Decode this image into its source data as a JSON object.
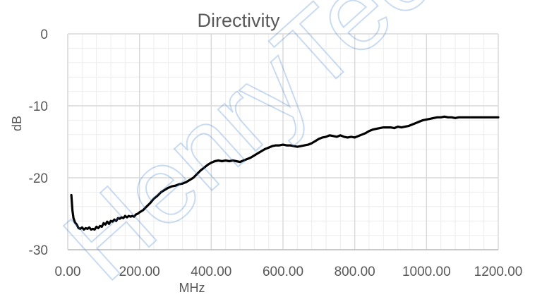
{
  "chart_data": {
    "type": "line",
    "title": "Directivity",
    "xlabel": "MHz",
    "ylabel": "dB",
    "xlim": [
      0,
      1200
    ],
    "ylim": [
      -30,
      0
    ],
    "grid": true,
    "x_ticks": [
      "0.00",
      "200.00",
      "400.00",
      "600.00",
      "800.00",
      "1000.00",
      "1200.00"
    ],
    "y_ticks": [
      "0",
      "-10",
      "-20",
      "-30"
    ],
    "watermark": "HenryTech",
    "series": [
      {
        "color": "#000000",
        "x": [
          10,
          13,
          16,
          20,
          25,
          30,
          35,
          40,
          45,
          50,
          55,
          60,
          65,
          70,
          75,
          80,
          85,
          90,
          95,
          100,
          105,
          110,
          115,
          120,
          125,
          130,
          135,
          140,
          145,
          150,
          155,
          160,
          165,
          170,
          175,
          180,
          185,
          190,
          195,
          200,
          210,
          220,
          230,
          240,
          250,
          260,
          270,
          280,
          290,
          300,
          310,
          320,
          330,
          340,
          350,
          360,
          370,
          380,
          390,
          400,
          410,
          420,
          430,
          440,
          450,
          460,
          470,
          480,
          490,
          500,
          510,
          520,
          530,
          540,
          550,
          560,
          570,
          580,
          590,
          600,
          610,
          620,
          630,
          640,
          650,
          660,
          670,
          680,
          690,
          700,
          710,
          720,
          730,
          740,
          750,
          760,
          770,
          780,
          790,
          800,
          810,
          820,
          830,
          840,
          850,
          860,
          870,
          880,
          890,
          900,
          910,
          920,
          930,
          940,
          950,
          960,
          970,
          980,
          990,
          1000,
          1010,
          1020,
          1030,
          1040,
          1050,
          1060,
          1070,
          1080,
          1090,
          1100,
          1110,
          1120,
          1130,
          1140,
          1150,
          1160,
          1170,
          1180,
          1190,
          1200
        ],
        "y": [
          -22.4,
          -24.5,
          -25.6,
          -26.2,
          -26.5,
          -27.0,
          -27.1,
          -26.9,
          -27.2,
          -27.0,
          -27.1,
          -26.9,
          -27.2,
          -27.1,
          -27.2,
          -26.8,
          -27.0,
          -26.7,
          -26.8,
          -26.3,
          -26.5,
          -26.1,
          -26.4,
          -26.0,
          -26.1,
          -25.8,
          -26.0,
          -25.6,
          -25.7,
          -25.5,
          -25.6,
          -25.3,
          -25.5,
          -25.3,
          -25.4,
          -25.3,
          -25.4,
          -25.1,
          -25.0,
          -24.8,
          -24.5,
          -24.0,
          -23.5,
          -22.9,
          -22.5,
          -22.0,
          -21.7,
          -21.4,
          -21.2,
          -21.1,
          -20.9,
          -20.8,
          -20.6,
          -20.3,
          -20.0,
          -19.5,
          -19.0,
          -18.6,
          -18.2,
          -17.9,
          -17.7,
          -17.6,
          -17.7,
          -17.6,
          -17.7,
          -17.6,
          -17.7,
          -17.8,
          -17.6,
          -17.4,
          -17.2,
          -16.9,
          -16.6,
          -16.3,
          -16.0,
          -15.8,
          -15.6,
          -15.5,
          -15.5,
          -15.4,
          -15.5,
          -15.5,
          -15.6,
          -15.7,
          -15.6,
          -15.5,
          -15.4,
          -15.2,
          -14.9,
          -14.6,
          -14.4,
          -14.3,
          -14.1,
          -14.2,
          -14.3,
          -14.1,
          -14.3,
          -14.4,
          -14.3,
          -14.4,
          -14.2,
          -14.0,
          -13.8,
          -13.5,
          -13.3,
          -13.2,
          -13.1,
          -13.0,
          -13.0,
          -13.0,
          -13.1,
          -12.9,
          -13.0,
          -12.9,
          -12.8,
          -12.6,
          -12.4,
          -12.2,
          -12.0,
          -11.9,
          -11.8,
          -11.7,
          -11.6,
          -11.6,
          -11.5,
          -11.6,
          -11.6,
          -11.7,
          -11.6,
          -11.6,
          -11.6,
          -11.6,
          -11.6,
          -11.6,
          -11.6,
          -11.6,
          -11.6,
          -11.6,
          -11.6,
          -11.6
        ]
      }
    ]
  }
}
